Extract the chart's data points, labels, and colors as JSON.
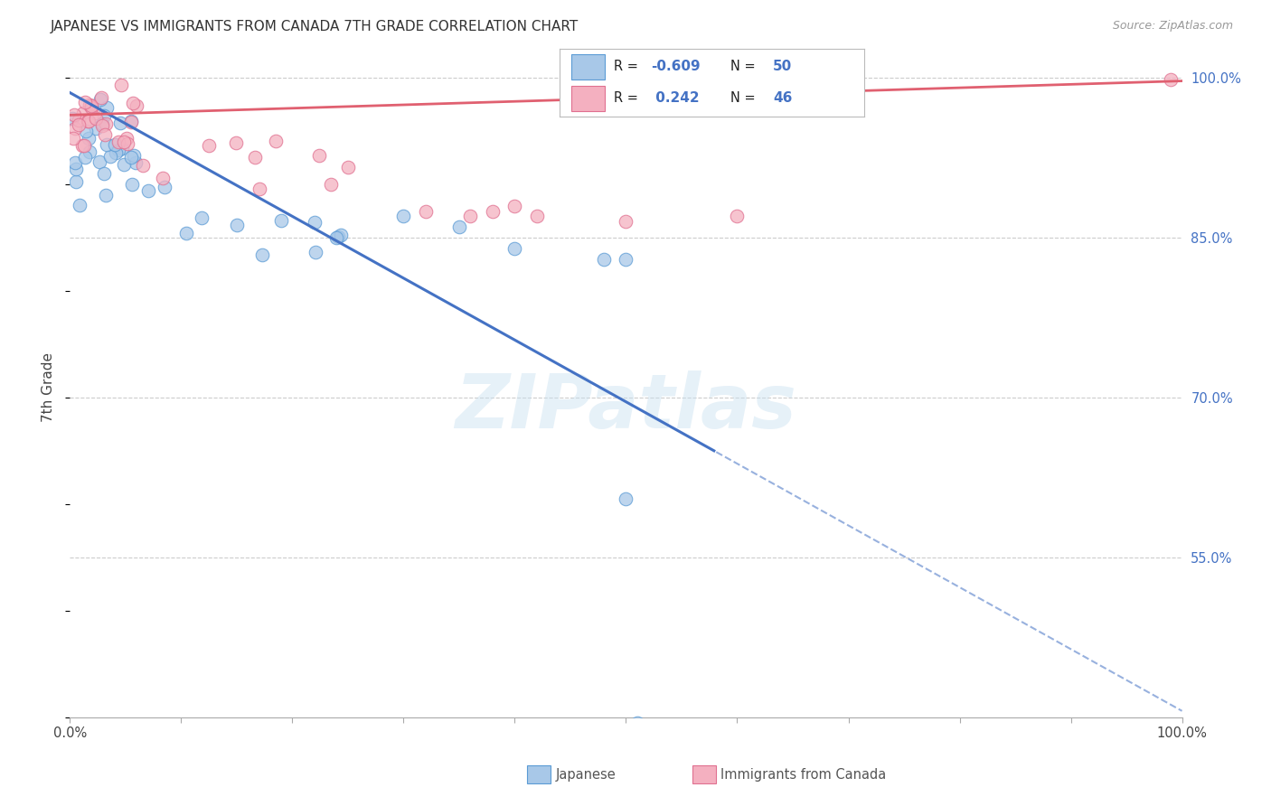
{
  "title": "JAPANESE VS IMMIGRANTS FROM CANADA 7TH GRADE CORRELATION CHART",
  "source": "Source: ZipAtlas.com",
  "ylabel": "7th Grade",
  "legend_japanese": "Japanese",
  "legend_canada": "Immigrants from Canada",
  "R_japanese": -0.609,
  "N_japanese": 50,
  "R_canada": 0.242,
  "N_canada": 46,
  "color_japanese": "#a8c8e8",
  "color_canada": "#f4b0c0",
  "color_japanese_edge": "#5b9bd5",
  "color_canada_edge": "#e07090",
  "line_japanese": "#4472c4",
  "line_canada": "#e06070",
  "grid_color": "#cccccc",
  "right_label_color": "#4472c4",
  "ylim_min": 0.4,
  "ylim_max": 1.02,
  "xlim_min": 0.0,
  "xlim_max": 1.0,
  "solid_line_end": 0.58,
  "japan_line_start_y": 0.986,
  "japan_line_slope": -0.58,
  "canada_line_start_y": 0.965,
  "canada_line_slope": 0.032
}
